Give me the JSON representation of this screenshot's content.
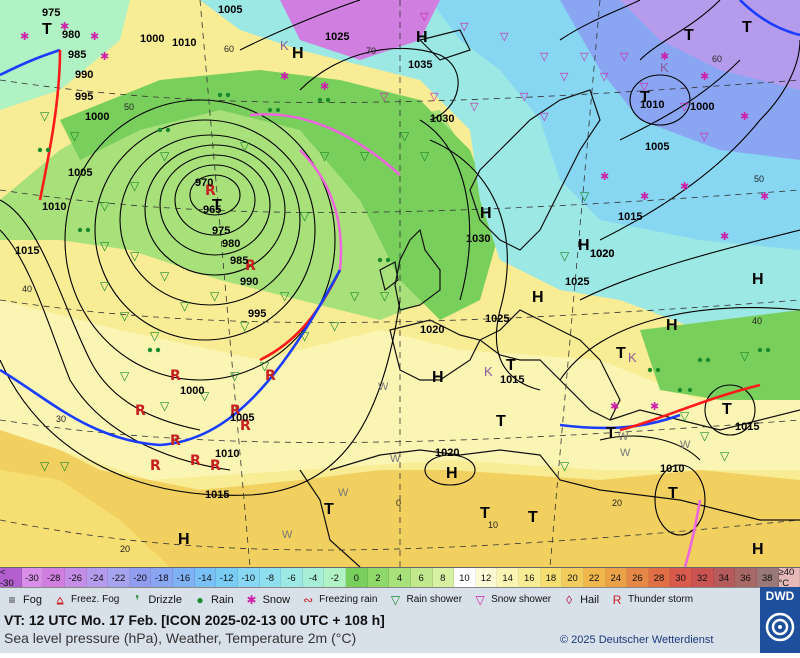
{
  "colors": {
    "snow": "#cc22aa",
    "rain": "#1a8a2a",
    "warm_front": "#ff1a1a",
    "cold_front": "#1a3cff",
    "occluded": "#ee66dd",
    "isobar": "#000000"
  },
  "map": {
    "isobars": [
      "975",
      "980",
      "985",
      "990",
      "995",
      "1000",
      "1005",
      "1010",
      "1015",
      "965",
      "970",
      "975",
      "980",
      "985",
      "990",
      "995",
      "1000",
      "1005",
      "1010",
      "1015",
      "1025",
      "1035",
      "1030",
      "1030",
      "1025",
      "1020",
      "1015",
      "1010",
      "1005",
      "1000",
      "1020",
      "1020",
      "1025",
      "1020",
      "1015",
      "1015",
      "1010",
      "1005",
      "1000",
      "1010",
      "1015"
    ],
    "lat_labels": [
      "60",
      "70",
      "50",
      "60",
      "40",
      "30",
      "20",
      "40",
      "50",
      "0",
      "10",
      "20"
    ],
    "high_labels": [
      "H",
      "H",
      "H",
      "H",
      "H",
      "H",
      "H",
      "H",
      "H",
      "H",
      "H"
    ],
    "low_labels": [
      "T",
      "T",
      "T",
      "T",
      "T",
      "T",
      "T",
      "T",
      "T",
      "T",
      "T",
      "T",
      "T",
      "T"
    ],
    "k_labels": [
      "K",
      "K",
      "K",
      "K"
    ],
    "w_labels": [
      "W",
      "W",
      "W",
      "W",
      "W",
      "W",
      "W"
    ]
  },
  "scale": {
    "cells": [
      "< -30",
      "-30",
      "-28",
      "-26",
      "-24",
      "-22",
      "-20",
      "-18",
      "-16",
      "-14",
      "-12",
      "-10",
      "-8",
      "-6",
      "-4",
      "-2",
      "0",
      "2",
      "4",
      "6",
      "8",
      "10",
      "12",
      "14",
      "16",
      "18",
      "20",
      "22",
      "24",
      "26",
      "28",
      "30",
      "32",
      "34",
      "36",
      "38",
      "≥40 °C"
    ],
    "colors": [
      "#b35fcf",
      "#d98ee8",
      "#d07fe0",
      "#c38de8",
      "#b49bec",
      "#a7a4ef",
      "#8f9cf0",
      "#8aa6f3",
      "#7fb1f5",
      "#78c0f6",
      "#79ccf4",
      "#87d6f2",
      "#8fe0ee",
      "#9be8e4",
      "#a7eed6",
      "#b0f2c4",
      "#79cf5c",
      "#8fd86a",
      "#a8e07a",
      "#c1e88c",
      "#d8f0a2",
      "#ffffff",
      "#fdfbd6",
      "#fbf5b4",
      "#f8ec94",
      "#f5de72",
      "#f2cc5c",
      "#efb74c",
      "#eba147",
      "#e68845",
      "#e06f46",
      "#d85a4c",
      "#c95452",
      "#b55b5c",
      "#a86866",
      "#9a7878",
      "#e6b8b8"
    ]
  },
  "legend": {
    "items": [
      {
        "label": "Fog",
        "icon": "fog-icon",
        "glyph": "≡",
        "color": "#333"
      },
      {
        "label": "Freez. Fog",
        "icon": "freezing-fog-icon",
        "glyph": "⩠",
        "color": "#c82020"
      },
      {
        "label": "Drizzle",
        "icon": "drizzle-icon",
        "glyph": "❜",
        "color": "#1a8a2a"
      },
      {
        "label": "Rain",
        "icon": "rain-icon",
        "glyph": "●",
        "color": "#1a8a2a"
      },
      {
        "label": "Snow",
        "icon": "snow-icon",
        "glyph": "✱",
        "color": "#cc22aa"
      },
      {
        "label": "Freezing rain",
        "icon": "freezing-rain-icon",
        "glyph": "∾",
        "color": "#c82020"
      },
      {
        "label": "Rain shower",
        "icon": "rain-shower-icon",
        "glyph": "▽",
        "color": "#1a8a2a"
      },
      {
        "label": "Snow shower",
        "icon": "snow-shower-icon",
        "glyph": "▽",
        "color": "#cc22aa"
      },
      {
        "label": "Hail",
        "icon": "hail-icon",
        "glyph": "◊",
        "color": "#b0184a"
      },
      {
        "label": "Thunder storm",
        "icon": "thunderstorm-icon",
        "glyph": "R",
        "color": "#c82020"
      }
    ]
  },
  "footer": {
    "valid_time": "VT: 12 UTC Mo.  17 Feb. [ICON 2025-02-13  00 UTC + 108 h]",
    "subtitle": "Sea level pressure (hPa), Weather, Temperature 2m (°C)",
    "copyright": "© 2025 Deutscher Wetterdienst",
    "logo": "DWD"
  }
}
